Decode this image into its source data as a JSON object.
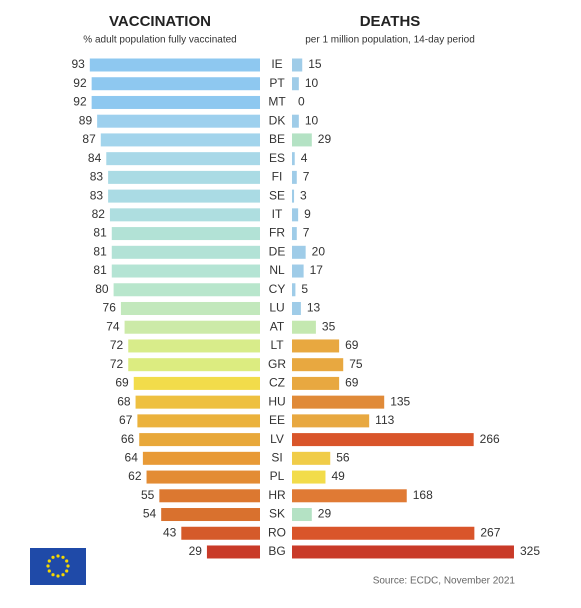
{
  "chart_data": {
    "type": "bar",
    "categories": [
      "IE",
      "PT",
      "MT",
      "DK",
      "BE",
      "ES",
      "FI",
      "SE",
      "IT",
      "FR",
      "DE",
      "NL",
      "CY",
      "LU",
      "AT",
      "LT",
      "GR",
      "CZ",
      "HU",
      "EE",
      "LV",
      "SI",
      "PL",
      "HR",
      "SK",
      "RO",
      "BG"
    ],
    "series": [
      {
        "name": "VACCINATION",
        "subtitle": "% adult population fully vaccinated",
        "values": [
          93,
          92,
          92,
          89,
          87,
          84,
          83,
          83,
          82,
          81,
          81,
          81,
          80,
          76,
          74,
          72,
          72,
          69,
          68,
          67,
          66,
          64,
          62,
          55,
          54,
          43,
          29
        ],
        "colors": [
          "#8ec8f0",
          "#8ec8f0",
          "#8ec8f0",
          "#9dd0ee",
          "#a2d4ec",
          "#a8d8e8",
          "#aadbe4",
          "#aadbe4",
          "#aedee0",
          "#b2e2d6",
          "#b2e2d6",
          "#b4e4d4",
          "#b8e6cc",
          "#c2e8bc",
          "#cceaa8",
          "#d8ec8a",
          "#dcec80",
          "#f2dc4a",
          "#eec040",
          "#ebb23c",
          "#e8a83a",
          "#e89a36",
          "#e38c34",
          "#dc7830",
          "#d9712e",
          "#d55a2a",
          "#c93a28"
        ]
      },
      {
        "name": "DEATHS",
        "subtitle": "per 1 million population, 14-day period",
        "values": [
          15,
          10,
          0,
          10,
          29,
          4,
          7,
          3,
          9,
          7,
          20,
          17,
          5,
          13,
          35,
          69,
          75,
          69,
          135,
          113,
          266,
          56,
          49,
          168,
          29,
          267,
          325
        ],
        "colors": [
          "#9fcce8",
          "#9fcce8",
          "#9fcce8",
          "#9fcce8",
          "#b4e2c4",
          "#9fcce8",
          "#9fcce8",
          "#9fcce8",
          "#9fcce8",
          "#9fcce8",
          "#9fcce8",
          "#9fcce8",
          "#9fcce8",
          "#9fcce8",
          "#c4e8b0",
          "#e8a840",
          "#e8a840",
          "#e8a840",
          "#e08a38",
          "#e8a840",
          "#d9552a",
          "#f0cc48",
          "#f2dc4a",
          "#e07a34",
          "#b4e2c4",
          "#d9552a",
          "#c93a28"
        ]
      }
    ],
    "source": "Source: ECDC, November 2021"
  }
}
